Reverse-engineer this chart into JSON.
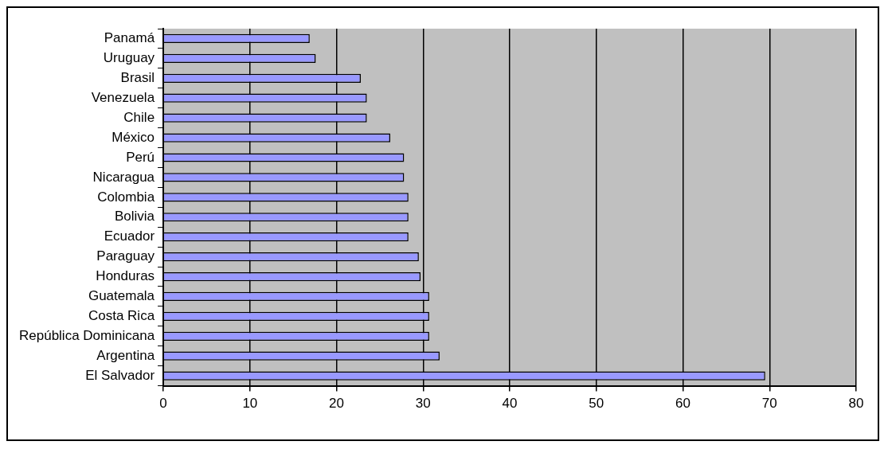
{
  "chart_data": {
    "type": "bar",
    "orientation": "horizontal",
    "categories": [
      "Panamá",
      "Uruguay",
      "Brasil",
      "Venezuela",
      "Chile",
      "México",
      "Perú",
      "Nicaragua",
      "Colombia",
      "Bolivia",
      "Ecuador",
      "Paraguay",
      "Honduras",
      "Guatemala",
      "Costa Rica",
      "República Dominicana",
      "Argentina",
      "El Salvador"
    ],
    "values": [
      16.9,
      17.6,
      22.8,
      23.5,
      23.5,
      26.2,
      27.8,
      27.8,
      28.3,
      28.3,
      28.3,
      29.5,
      29.7,
      30.7,
      30.7,
      30.7,
      31.9,
      69.5
    ],
    "color": "#9999ff",
    "xlim": [
      0,
      80
    ],
    "xticks": [
      0,
      10,
      20,
      30,
      40,
      50,
      60,
      70,
      80
    ],
    "grid": "x",
    "legend": false
  }
}
